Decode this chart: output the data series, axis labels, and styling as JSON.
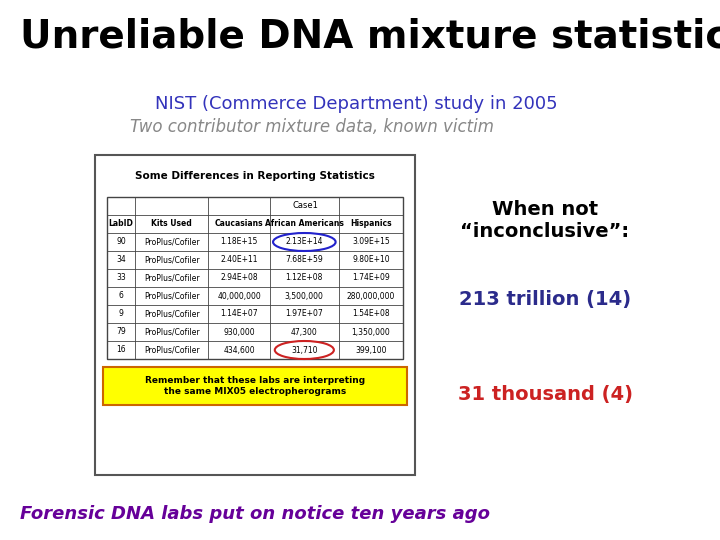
{
  "title": "Unreliable DNA mixture statistics",
  "subtitle1": "NIST (Commerce Department) study in 2005",
  "subtitle2": "Two contributor mixture data, known victim",
  "subtitle1_color": "#3333bb",
  "subtitle2_color": "#888888",
  "table_title": "Some Differences in Reporting Statistics",
  "table_headers_row2": [
    "LabID",
    "Kits Used",
    "Caucasians",
    "African Americans",
    "Hispanics"
  ],
  "table_data": [
    [
      "90",
      "ProPlus/Cofiler",
      "1.18E+15",
      "2.13E+14",
      "3.09E+15"
    ],
    [
      "34",
      "ProPlus/Cofiler",
      "2.40E+11",
      "7.68E+59",
      "9.80E+10"
    ],
    [
      "33",
      "ProPlus/Cofiler",
      "2.94E+08",
      "1.12E+08",
      "1.74E+09"
    ],
    [
      "6",
      "ProPlus/Cofiler",
      "40,000,000",
      "3,500,000",
      "280,000,000"
    ],
    [
      "9",
      "ProPlus/Cofiler",
      "1.14E+07",
      "1.97E+07",
      "1.54E+08"
    ],
    [
      "79",
      "ProPlus/Cofiler",
      "930,000",
      "47,300",
      "1,350,000"
    ],
    [
      "16",
      "ProPlus/Cofiler",
      "434,600",
      "31,710",
      "399,100"
    ]
  ],
  "circle_blue_row": 0,
  "circle_blue_col": 3,
  "circle_red_row": 6,
  "circle_red_col": 3,
  "note_text": "Remember that these labs are interpreting\nthe same MIX05 electropherograms",
  "note_bg": "#ffff00",
  "note_border": "#cc6600",
  "right_text1": "When not\n“inconclusive”:",
  "right_text2": "213 trillion (14)",
  "right_text3": "31 thousand (4)",
  "right_text1_color": "#000000",
  "right_text2_color": "#2b2b8b",
  "right_text3_color": "#cc2222",
  "bottom_text": "Forensic DNA labs put on notice ten years ago",
  "bottom_text_color": "#660099",
  "bg_color": "#ffffff",
  "title_fontsize": 28,
  "subtitle1_fontsize": 13,
  "subtitle2_fontsize": 12
}
